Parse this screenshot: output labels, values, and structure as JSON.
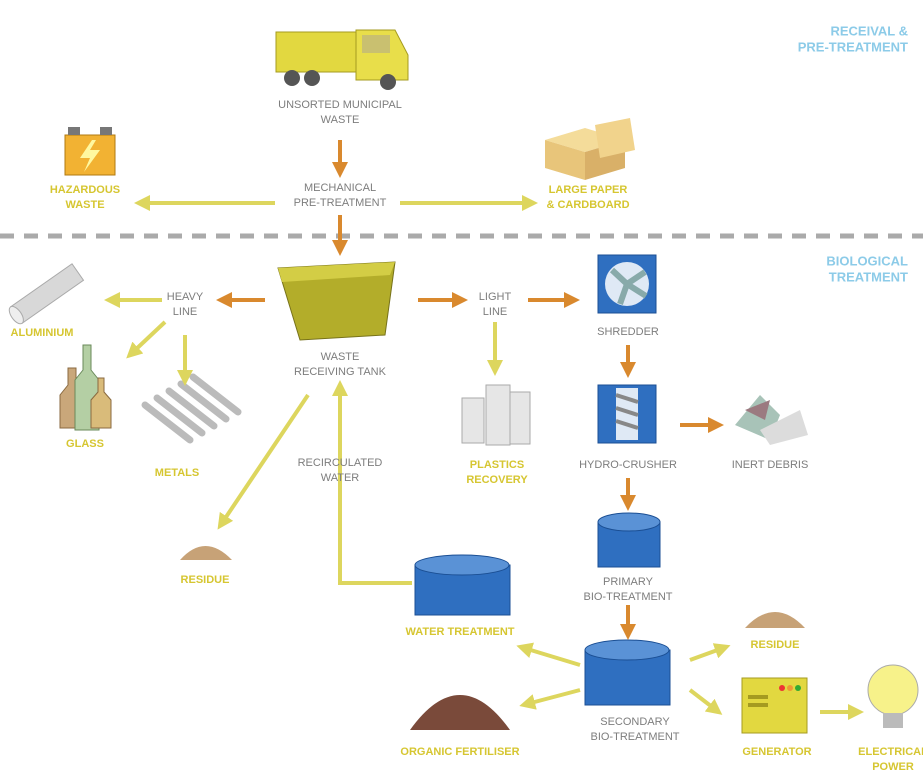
{
  "sections": [
    {
      "lines": [
        "RECEIVAL &",
        "PRE-TREATMENT"
      ]
    },
    {
      "lines": [
        "BIOLOGICAL",
        "TREATMENT"
      ]
    }
  ],
  "nodes": [
    {
      "lines": [
        "UNSORTED MUNICIPAL",
        "WASTE"
      ]
    },
    {
      "lines": [
        "MECHANICAL",
        "PRE-TREATMENT"
      ]
    },
    {
      "lines": [
        "HAZARDOUS",
        "WASTE"
      ]
    },
    {
      "lines": [
        "LARGE PAPER",
        "& CARDBOARD"
      ]
    },
    {
      "lines": [
        "HEAVY",
        "LINE"
      ]
    },
    {
      "lines": [
        "ALUMINIUM"
      ]
    },
    {
      "lines": [
        "GLASS"
      ]
    },
    {
      "lines": [
        "METALS"
      ]
    },
    {
      "lines": [
        "WASTE",
        "RECEIVING TANK"
      ]
    },
    {
      "lines": [
        "LIGHT",
        "LINE"
      ]
    },
    {
      "lines": [
        "PLASTICS",
        "RECOVERY"
      ]
    },
    {
      "lines": [
        "SHREDDER"
      ]
    },
    {
      "lines": [
        "HYDRO-CRUSHER"
      ]
    },
    {
      "lines": [
        "INERT DEBRIS"
      ]
    },
    {
      "lines": [
        "RECIRCULATED",
        "WATER"
      ]
    },
    {
      "lines": [
        "RESIDUE"
      ]
    },
    {
      "lines": [
        "PRIMARY",
        "BIO-TREATMENT"
      ]
    },
    {
      "lines": [
        "WATER TREATMENT"
      ]
    },
    {
      "lines": [
        "RESIDUE"
      ]
    },
    {
      "lines": [
        "SECONDARY",
        "BIO-TREATMENT"
      ]
    },
    {
      "lines": [
        "GENERATOR"
      ]
    },
    {
      "lines": [
        "ELECTRICAL",
        "POWER"
      ]
    },
    {
      "lines": [
        "ORGANIC FERTILISER"
      ]
    }
  ]
}
